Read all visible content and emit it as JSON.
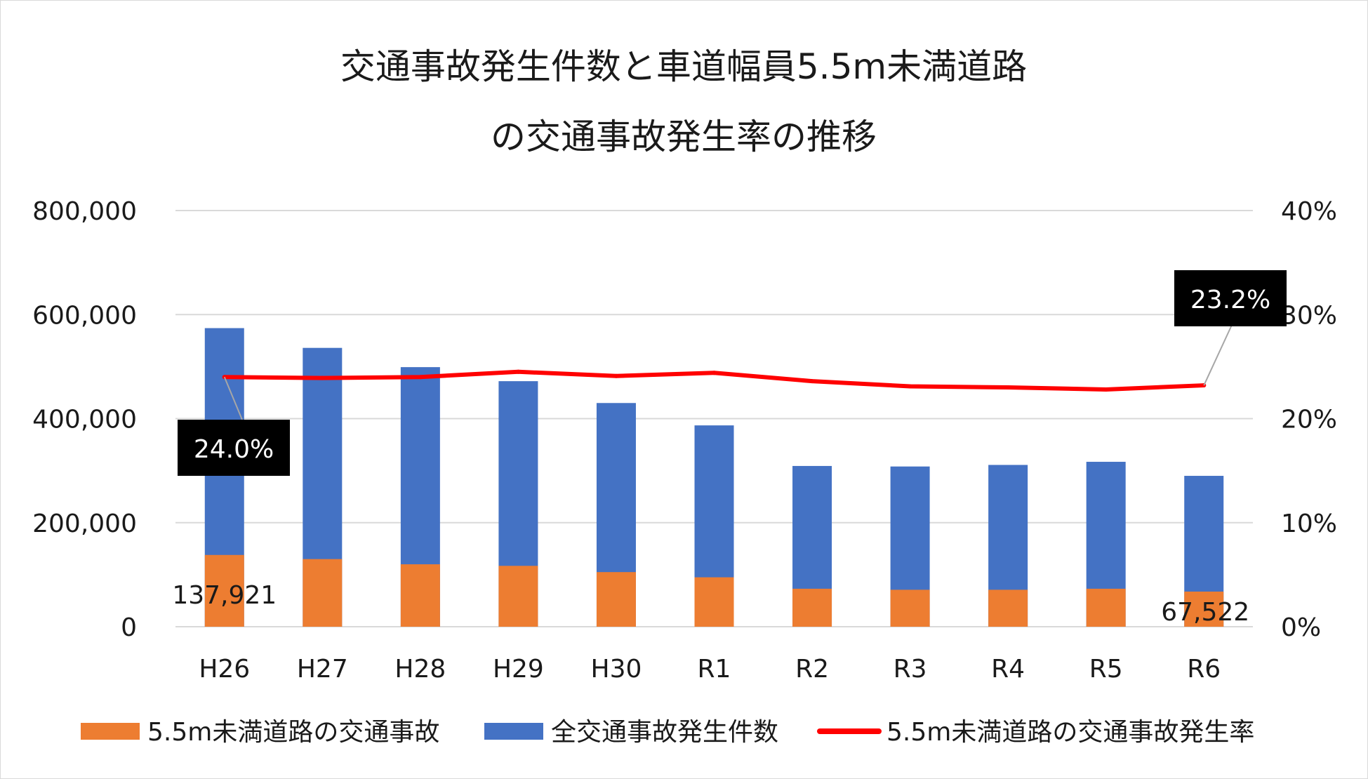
{
  "chart_data": {
    "type": "bar",
    "stacked": true,
    "title_lines": [
      "交通事故発生件数と車道幅員5.5m未満道路",
      "の交通事故発生率の推移"
    ],
    "categories": [
      "H26",
      "H27",
      "H28",
      "H29",
      "H30",
      "R1",
      "R2",
      "R3",
      "R4",
      "R5",
      "R6"
    ],
    "series": [
      {
        "name": "5.5m未満道路の交通事故",
        "kind": "bar",
        "axis": "left",
        "color": "#ED7D31",
        "values": [
          137921,
          130000,
          120000,
          117000,
          105000,
          95000,
          73000,
          71000,
          71000,
          73000,
          67522
        ]
      },
      {
        "name": "全交通事故発生件数",
        "kind": "bar",
        "axis": "left",
        "color": "#4472C4",
        "values": [
          574000,
          536000,
          499000,
          472000,
          430000,
          387000,
          309000,
          308000,
          311000,
          317000,
          290000
        ]
      },
      {
        "name": "5.5m未満道路の交通事故発生率",
        "kind": "line",
        "axis": "right",
        "color": "#FF0000",
        "values": [
          24.0,
          23.9,
          24.0,
          24.5,
          24.1,
          24.4,
          23.6,
          23.1,
          23.0,
          22.8,
          23.2
        ]
      }
    ],
    "left_axis": {
      "min": 0,
      "max": 800000,
      "ticks": [
        "0",
        "200,000",
        "400,000",
        "600,000",
        "800,000"
      ]
    },
    "right_axis": {
      "min": 0,
      "max": 40,
      "ticks": [
        "0%",
        "10%",
        "20%",
        "30%",
        "40%"
      ]
    },
    "data_labels": [
      {
        "series": 0,
        "index": 0,
        "text": "137,921"
      },
      {
        "series": 0,
        "index": 10,
        "text": "67,522"
      }
    ],
    "callouts": [
      {
        "series": 2,
        "index": 0,
        "text": "24.0%"
      },
      {
        "series": 2,
        "index": 10,
        "text": "23.2%"
      }
    ],
    "grid": true,
    "legend_position": "bottom"
  }
}
